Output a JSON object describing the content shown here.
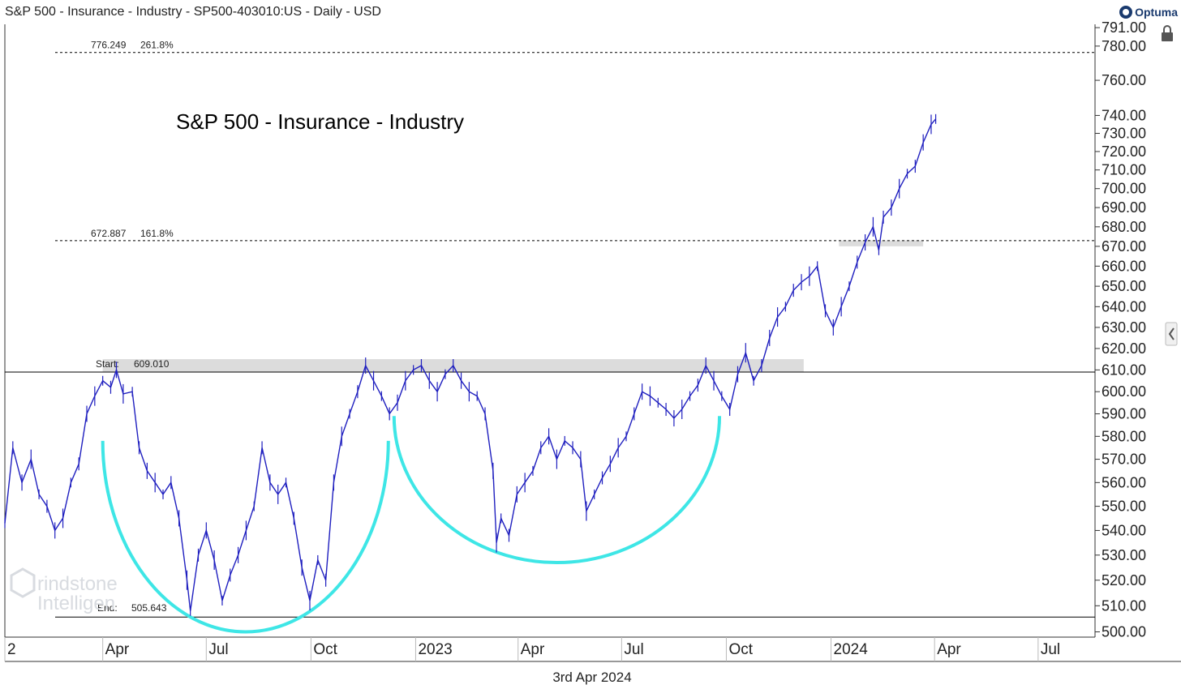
{
  "header": {
    "title": "S&P 500 - Insurance - Industry - SP500-403010:US - Daily - USD"
  },
  "brand": {
    "label": "Optuma"
  },
  "watermark": {
    "line1": "rindstone",
    "line2": "Intelligen"
  },
  "footer": {
    "date": "3rd Apr 2024"
  },
  "colors": {
    "price": "#1f1fbf",
    "arc": "#3ee6e6",
    "band": "#dcdcdc",
    "grid_line": "#000000",
    "dashed": "#000000"
  },
  "icons": {
    "lock": "lock-icon",
    "collapse": "chevron-left-icon"
  },
  "chart_data": {
    "type": "line",
    "title": "S&P 500 - Insurance - Industry",
    "xlabel": "",
    "ylabel": "",
    "y_scale": "log",
    "ylim": [
      498,
      793
    ],
    "xlim": [
      "2022-01-05",
      "2024-08-20"
    ],
    "x_ticks": [
      {
        "date": "2022-01-01",
        "label": "2"
      },
      {
        "date": "2022-04-01",
        "label": "Apr"
      },
      {
        "date": "2022-07-01",
        "label": "Jul"
      },
      {
        "date": "2022-10-01",
        "label": "Oct"
      },
      {
        "date": "2023-01-01",
        "label": "2023"
      },
      {
        "date": "2023-04-01",
        "label": "Apr"
      },
      {
        "date": "2023-07-01",
        "label": "Jul"
      },
      {
        "date": "2023-10-01",
        "label": "Oct"
      },
      {
        "date": "2024-01-01",
        "label": "2024"
      },
      {
        "date": "2024-04-01",
        "label": "Apr"
      },
      {
        "date": "2024-07-01",
        "label": "Jul"
      }
    ],
    "y_ticks": [
      "791.00",
      "780.00",
      "760.00",
      "740.00",
      "730.00",
      "720.00",
      "710.00",
      "700.00",
      "690.00",
      "680.00",
      "670.00",
      "660.00",
      "650.00",
      "640.00",
      "630.00",
      "620.00",
      "610.00",
      "600.00",
      "590.00",
      "580.00",
      "570.00",
      "560.00",
      "550.00",
      "540.00",
      "530.00",
      "520.00",
      "510.00",
      "500.00"
    ],
    "series": [
      {
        "values": [
          [
            "2022-01-05",
            543
          ],
          [
            "2022-01-12",
            575
          ],
          [
            "2022-01-20",
            560
          ],
          [
            "2022-01-28",
            570
          ],
          [
            "2022-02-04",
            555
          ],
          [
            "2022-02-11",
            550
          ],
          [
            "2022-02-18",
            540
          ],
          [
            "2022-02-25",
            545
          ],
          [
            "2022-03-04",
            560
          ],
          [
            "2022-03-11",
            568
          ],
          [
            "2022-03-18",
            590
          ],
          [
            "2022-03-25",
            598
          ],
          [
            "2022-04-01",
            605
          ],
          [
            "2022-04-08",
            602
          ],
          [
            "2022-04-13",
            610
          ],
          [
            "2022-04-19",
            599
          ],
          [
            "2022-04-27",
            600
          ],
          [
            "2022-05-03",
            575
          ],
          [
            "2022-05-10",
            565
          ],
          [
            "2022-05-17",
            560
          ],
          [
            "2022-05-24",
            555
          ],
          [
            "2022-05-31",
            560
          ],
          [
            "2022-06-07",
            545
          ],
          [
            "2022-06-14",
            520
          ],
          [
            "2022-06-17",
            508
          ],
          [
            "2022-06-24",
            530
          ],
          [
            "2022-07-01",
            540
          ],
          [
            "2022-07-08",
            528
          ],
          [
            "2022-07-15",
            512
          ],
          [
            "2022-07-22",
            522
          ],
          [
            "2022-07-29",
            530
          ],
          [
            "2022-08-05",
            540
          ],
          [
            "2022-08-12",
            550
          ],
          [
            "2022-08-19",
            575
          ],
          [
            "2022-08-26",
            560
          ],
          [
            "2022-09-02",
            555
          ],
          [
            "2022-09-09",
            560
          ],
          [
            "2022-09-16",
            545
          ],
          [
            "2022-09-23",
            525
          ],
          [
            "2022-09-30",
            512
          ],
          [
            "2022-10-07",
            528
          ],
          [
            "2022-10-14",
            520
          ],
          [
            "2022-10-21",
            560
          ],
          [
            "2022-10-28",
            580
          ],
          [
            "2022-11-04",
            590
          ],
          [
            "2022-11-11",
            600
          ],
          [
            "2022-11-18",
            612
          ],
          [
            "2022-11-25",
            605
          ],
          [
            "2022-12-02",
            598
          ],
          [
            "2022-12-09",
            590
          ],
          [
            "2022-12-16",
            595
          ],
          [
            "2022-12-23",
            605
          ],
          [
            "2022-12-30",
            610
          ],
          [
            "2023-01-06",
            612
          ],
          [
            "2023-01-13",
            605
          ],
          [
            "2023-01-20",
            600
          ],
          [
            "2023-01-27",
            608
          ],
          [
            "2023-02-03",
            612
          ],
          [
            "2023-02-10",
            605
          ],
          [
            "2023-02-17",
            600
          ],
          [
            "2023-02-24",
            598
          ],
          [
            "2023-03-03",
            590
          ],
          [
            "2023-03-10",
            565
          ],
          [
            "2023-03-13",
            535
          ],
          [
            "2023-03-17",
            545
          ],
          [
            "2023-03-24",
            538
          ],
          [
            "2023-03-31",
            555
          ],
          [
            "2023-04-07",
            560
          ],
          [
            "2023-04-14",
            565
          ],
          [
            "2023-04-21",
            575
          ],
          [
            "2023-04-28",
            580
          ],
          [
            "2023-05-05",
            570
          ],
          [
            "2023-05-12",
            578
          ],
          [
            "2023-05-19",
            575
          ],
          [
            "2023-05-26",
            570
          ],
          [
            "2023-05-31",
            548
          ],
          [
            "2023-06-07",
            555
          ],
          [
            "2023-06-14",
            562
          ],
          [
            "2023-06-21",
            568
          ],
          [
            "2023-06-28",
            575
          ],
          [
            "2023-07-05",
            580
          ],
          [
            "2023-07-12",
            590
          ],
          [
            "2023-07-19",
            600
          ],
          [
            "2023-07-26",
            598
          ],
          [
            "2023-08-02",
            595
          ],
          [
            "2023-08-09",
            592
          ],
          [
            "2023-08-16",
            588
          ],
          [
            "2023-08-23",
            592
          ],
          [
            "2023-08-30",
            598
          ],
          [
            "2023-09-06",
            603
          ],
          [
            "2023-09-13",
            612
          ],
          [
            "2023-09-20",
            605
          ],
          [
            "2023-09-27",
            598
          ],
          [
            "2023-10-04",
            592
          ],
          [
            "2023-10-11",
            608
          ],
          [
            "2023-10-18",
            618
          ],
          [
            "2023-10-25",
            605
          ],
          [
            "2023-11-01",
            612
          ],
          [
            "2023-11-08",
            625
          ],
          [
            "2023-11-15",
            635
          ],
          [
            "2023-11-22",
            640
          ],
          [
            "2023-11-29",
            648
          ],
          [
            "2023-12-06",
            652
          ],
          [
            "2023-12-13",
            655
          ],
          [
            "2023-12-20",
            660
          ],
          [
            "2023-12-27",
            638
          ],
          [
            "2024-01-03",
            630
          ],
          [
            "2024-01-10",
            640
          ],
          [
            "2024-01-17",
            650
          ],
          [
            "2024-01-24",
            662
          ],
          [
            "2024-01-31",
            672
          ],
          [
            "2024-02-07",
            680
          ],
          [
            "2024-02-12",
            668
          ],
          [
            "2024-02-16",
            685
          ],
          [
            "2024-02-23",
            690
          ],
          [
            "2024-03-01",
            700
          ],
          [
            "2024-03-08",
            708
          ],
          [
            "2024-03-15",
            712
          ],
          [
            "2024-03-22",
            725
          ],
          [
            "2024-03-29",
            735
          ],
          [
            "2024-04-02",
            738
          ]
        ]
      }
    ],
    "reference_lines": [
      {
        "label": "Start:",
        "value_label": "609.010",
        "y": 609.01
      },
      {
        "label": "End:",
        "value_label": "505.643",
        "y": 505.643
      }
    ],
    "fib_levels": [
      {
        "value_label": "776.249",
        "pct_label": "261.8%",
        "y": 776.249
      },
      {
        "value_label": "672.887",
        "pct_label": "161.8%",
        "y": 672.887
      }
    ],
    "resistance_bands": [
      {
        "x0": "2022-04-01",
        "x1": "2023-12-08",
        "y0": 609,
        "y1": 615
      },
      {
        "x0": "2024-01-08",
        "x1": "2024-03-22",
        "y0": 670,
        "y1": 673
      }
    ],
    "arcs": [
      {
        "x0": "2022-04-01",
        "x1": "2022-12-08",
        "y_top": 578,
        "y_bottom": 500
      },
      {
        "x0": "2022-12-13",
        "x1": "2023-09-25",
        "y_top": 589,
        "y_bottom": 527
      }
    ]
  }
}
